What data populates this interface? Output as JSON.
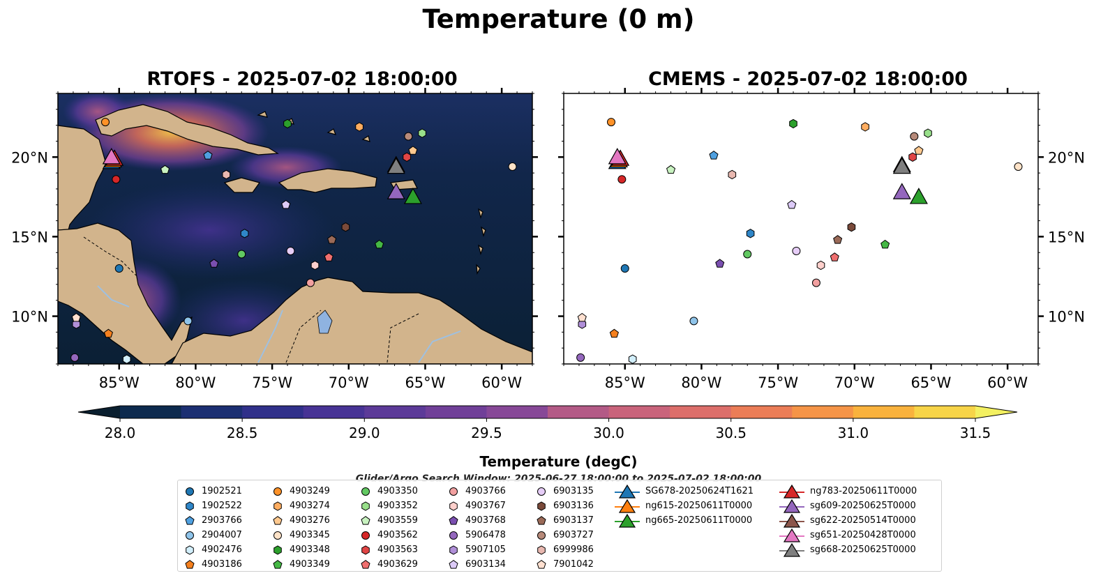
{
  "figure": {
    "suptitle": "Temperature (0 m)",
    "left_title": "RTOFS - 2025-07-02 18:00:00",
    "right_title": "CMEMS - 2025-07-02 18:00:00",
    "search_window": "Glider/Argo Search Window: 2025-06-27 18:00:00 to 2025-07-02 18:00:00"
  },
  "chart_data": {
    "type": "heatmap",
    "panels": [
      "RTOFS",
      "CMEMS"
    ],
    "variable": "Temperature",
    "depth_m": 0,
    "x_range": [
      -89,
      -58
    ],
    "y_range": [
      7,
      24
    ],
    "x_ticks": [
      -85,
      -80,
      -75,
      -70,
      -65,
      -60
    ],
    "x_tick_labels": [
      "85°W",
      "80°W",
      "75°W",
      "70°W",
      "65°W",
      "60°W"
    ],
    "y_ticks": [
      10,
      15,
      20
    ],
    "y_tick_labels": [
      "10°N",
      "15°N",
      "20°N"
    ],
    "colorbar": {
      "label": "Temperature (degC)",
      "min": 28.0,
      "max": 31.5,
      "ticks": [
        28.0,
        28.5,
        29.0,
        29.5,
        30.0,
        30.5,
        31.0,
        31.5
      ],
      "tick_labels": [
        "28.0",
        "28.5",
        "29.0",
        "29.5",
        "30.0",
        "30.5",
        "31.0",
        "31.5"
      ],
      "colors": [
        "#0a1f2f",
        "#0d2a4e",
        "#1c2f72",
        "#30308a",
        "#473395",
        "#5c3a98",
        "#703f98",
        "#874897",
        "#9c5191",
        "#b35a86",
        "#c9637b",
        "#dc6e6a",
        "#eb7d57",
        "#f59447",
        "#f9b23d",
        "#f7d448",
        "#f3f061"
      ],
      "extend": "both"
    },
    "argo_floats": [
      {
        "id": "1902521",
        "marker": "circle",
        "color": "#1f77b4",
        "lon": -85,
        "lat": 13
      },
      {
        "id": "1902522",
        "marker": "hexagon",
        "color": "#2f86c8",
        "lon": -76.8,
        "lat": 15.2
      },
      {
        "id": "2903766",
        "marker": "pentagon",
        "color": "#4fa0e0",
        "lon": -79.2,
        "lat": 20.1
      },
      {
        "id": "2904007",
        "marker": "circle",
        "color": "#8fc4ea",
        "lon": -80.5,
        "lat": 9.7
      },
      {
        "id": "4902476",
        "marker": "hexagon",
        "color": "#d2effc",
        "lon": -84.5,
        "lat": 7.3
      },
      {
        "id": "4903186",
        "marker": "pentagon",
        "color": "#f5801e",
        "lon": -85.7,
        "lat": 8.9
      },
      {
        "id": "4903249",
        "marker": "circle",
        "color": "#ff9228",
        "lon": -85.9,
        "lat": 22.2
      },
      {
        "id": "4903274",
        "marker": "hexagon",
        "color": "#ffad60",
        "lon": -69.3,
        "lat": 21.9
      },
      {
        "id": "4903276",
        "marker": "pentagon",
        "color": "#ffc98f",
        "lon": -65.8,
        "lat": 20.4
      },
      {
        "id": "4903345",
        "marker": "circle",
        "color": "#ffe3c8",
        "lon": -59.3,
        "lat": 19.4
      },
      {
        "id": "4903348",
        "marker": "hexagon",
        "color": "#2ca02c",
        "lon": -74,
        "lat": 22.1
      },
      {
        "id": "4903349",
        "marker": "pentagon",
        "color": "#45b845",
        "lon": -68,
        "lat": 14.5
      },
      {
        "id": "4903350",
        "marker": "circle",
        "color": "#62c962",
        "lon": -77,
        "lat": 13.9
      },
      {
        "id": "4903352",
        "marker": "hexagon",
        "color": "#98df8a",
        "lon": -65.2,
        "lat": 21.5
      },
      {
        "id": "4903559",
        "marker": "pentagon",
        "color": "#c8f2c0",
        "lon": -82,
        "lat": 19.2
      },
      {
        "id": "4903562",
        "marker": "circle",
        "color": "#d62728",
        "lon": -85.2,
        "lat": 18.6
      },
      {
        "id": "4903563",
        "marker": "hexagon",
        "color": "#e04545",
        "lon": -66.2,
        "lat": 20
      },
      {
        "id": "4903629",
        "marker": "pentagon",
        "color": "#ef6f6f",
        "lon": -71.3,
        "lat": 13.7
      },
      {
        "id": "4903766",
        "marker": "circle",
        "color": "#f2a0a0",
        "lon": -72.5,
        "lat": 12.1
      },
      {
        "id": "4903767",
        "marker": "hexagon",
        "color": "#ffd0cc",
        "lon": -72.2,
        "lat": 13.2
      },
      {
        "id": "4903768",
        "marker": "pentagon",
        "color": "#7a4fb0",
        "lon": -78.8,
        "lat": 13.3
      },
      {
        "id": "5906478",
        "marker": "circle",
        "color": "#9467bd",
        "lon": -87.9,
        "lat": 7.4
      },
      {
        "id": "5907105",
        "marker": "hexagon",
        "color": "#b08fd8",
        "lon": -87.8,
        "lat": 9.5
      },
      {
        "id": "6903134",
        "marker": "pentagon",
        "color": "#dccaf7",
        "lon": -74.1,
        "lat": 17
      },
      {
        "id": "6903135",
        "marker": "circle",
        "color": "#e6cdf7",
        "lon": -73.8,
        "lat": 14.1
      },
      {
        "id": "6903136",
        "marker": "hexagon",
        "color": "#7a4a3a",
        "lon": -70.2,
        "lat": 15.6
      },
      {
        "id": "6903137",
        "marker": "pentagon",
        "color": "#9a6a58",
        "lon": -71.1,
        "lat": 14.8
      },
      {
        "id": "6903727",
        "marker": "circle",
        "color": "#b78a7a",
        "lon": -66.1,
        "lat": 21.3
      },
      {
        "id": "6999986",
        "marker": "hexagon",
        "color": "#e8b8b0",
        "lon": -78,
        "lat": 18.9
      },
      {
        "id": "7901042",
        "marker": "pentagon",
        "color": "#ffe0d0",
        "lon": -87.8,
        "lat": 9.9
      }
    ],
    "gliders": [
      {
        "id": "SG678-20250624T1621",
        "color": "#1f77b4",
        "lon": -85.5,
        "lat": 19.7
      },
      {
        "id": "ng615-20250611T0000",
        "color": "#ff7f0e",
        "lon": -85.4,
        "lat": 19.8
      },
      {
        "id": "ng665-20250611T0000",
        "color": "#2ca02c",
        "lon": -65.8,
        "lat": 17.5
      },
      {
        "id": "ng783-20250611T0000",
        "color": "#d62728",
        "lon": -85.3,
        "lat": 19.9
      },
      {
        "id": "sg609-20250625T0000",
        "color": "#9467bd",
        "lon": -66.9,
        "lat": 17.8
      },
      {
        "id": "sg622-20250514T0000",
        "color": "#8c564b",
        "lon": -66.9,
        "lat": 19.5
      },
      {
        "id": "sg651-20250428T0000",
        "color": "#e377c2",
        "lon": -85.5,
        "lat": 20
      },
      {
        "id": "sg668-20250625T0000",
        "color": "#7f7f7f",
        "lon": -66.9,
        "lat": 19.4
      }
    ]
  }
}
